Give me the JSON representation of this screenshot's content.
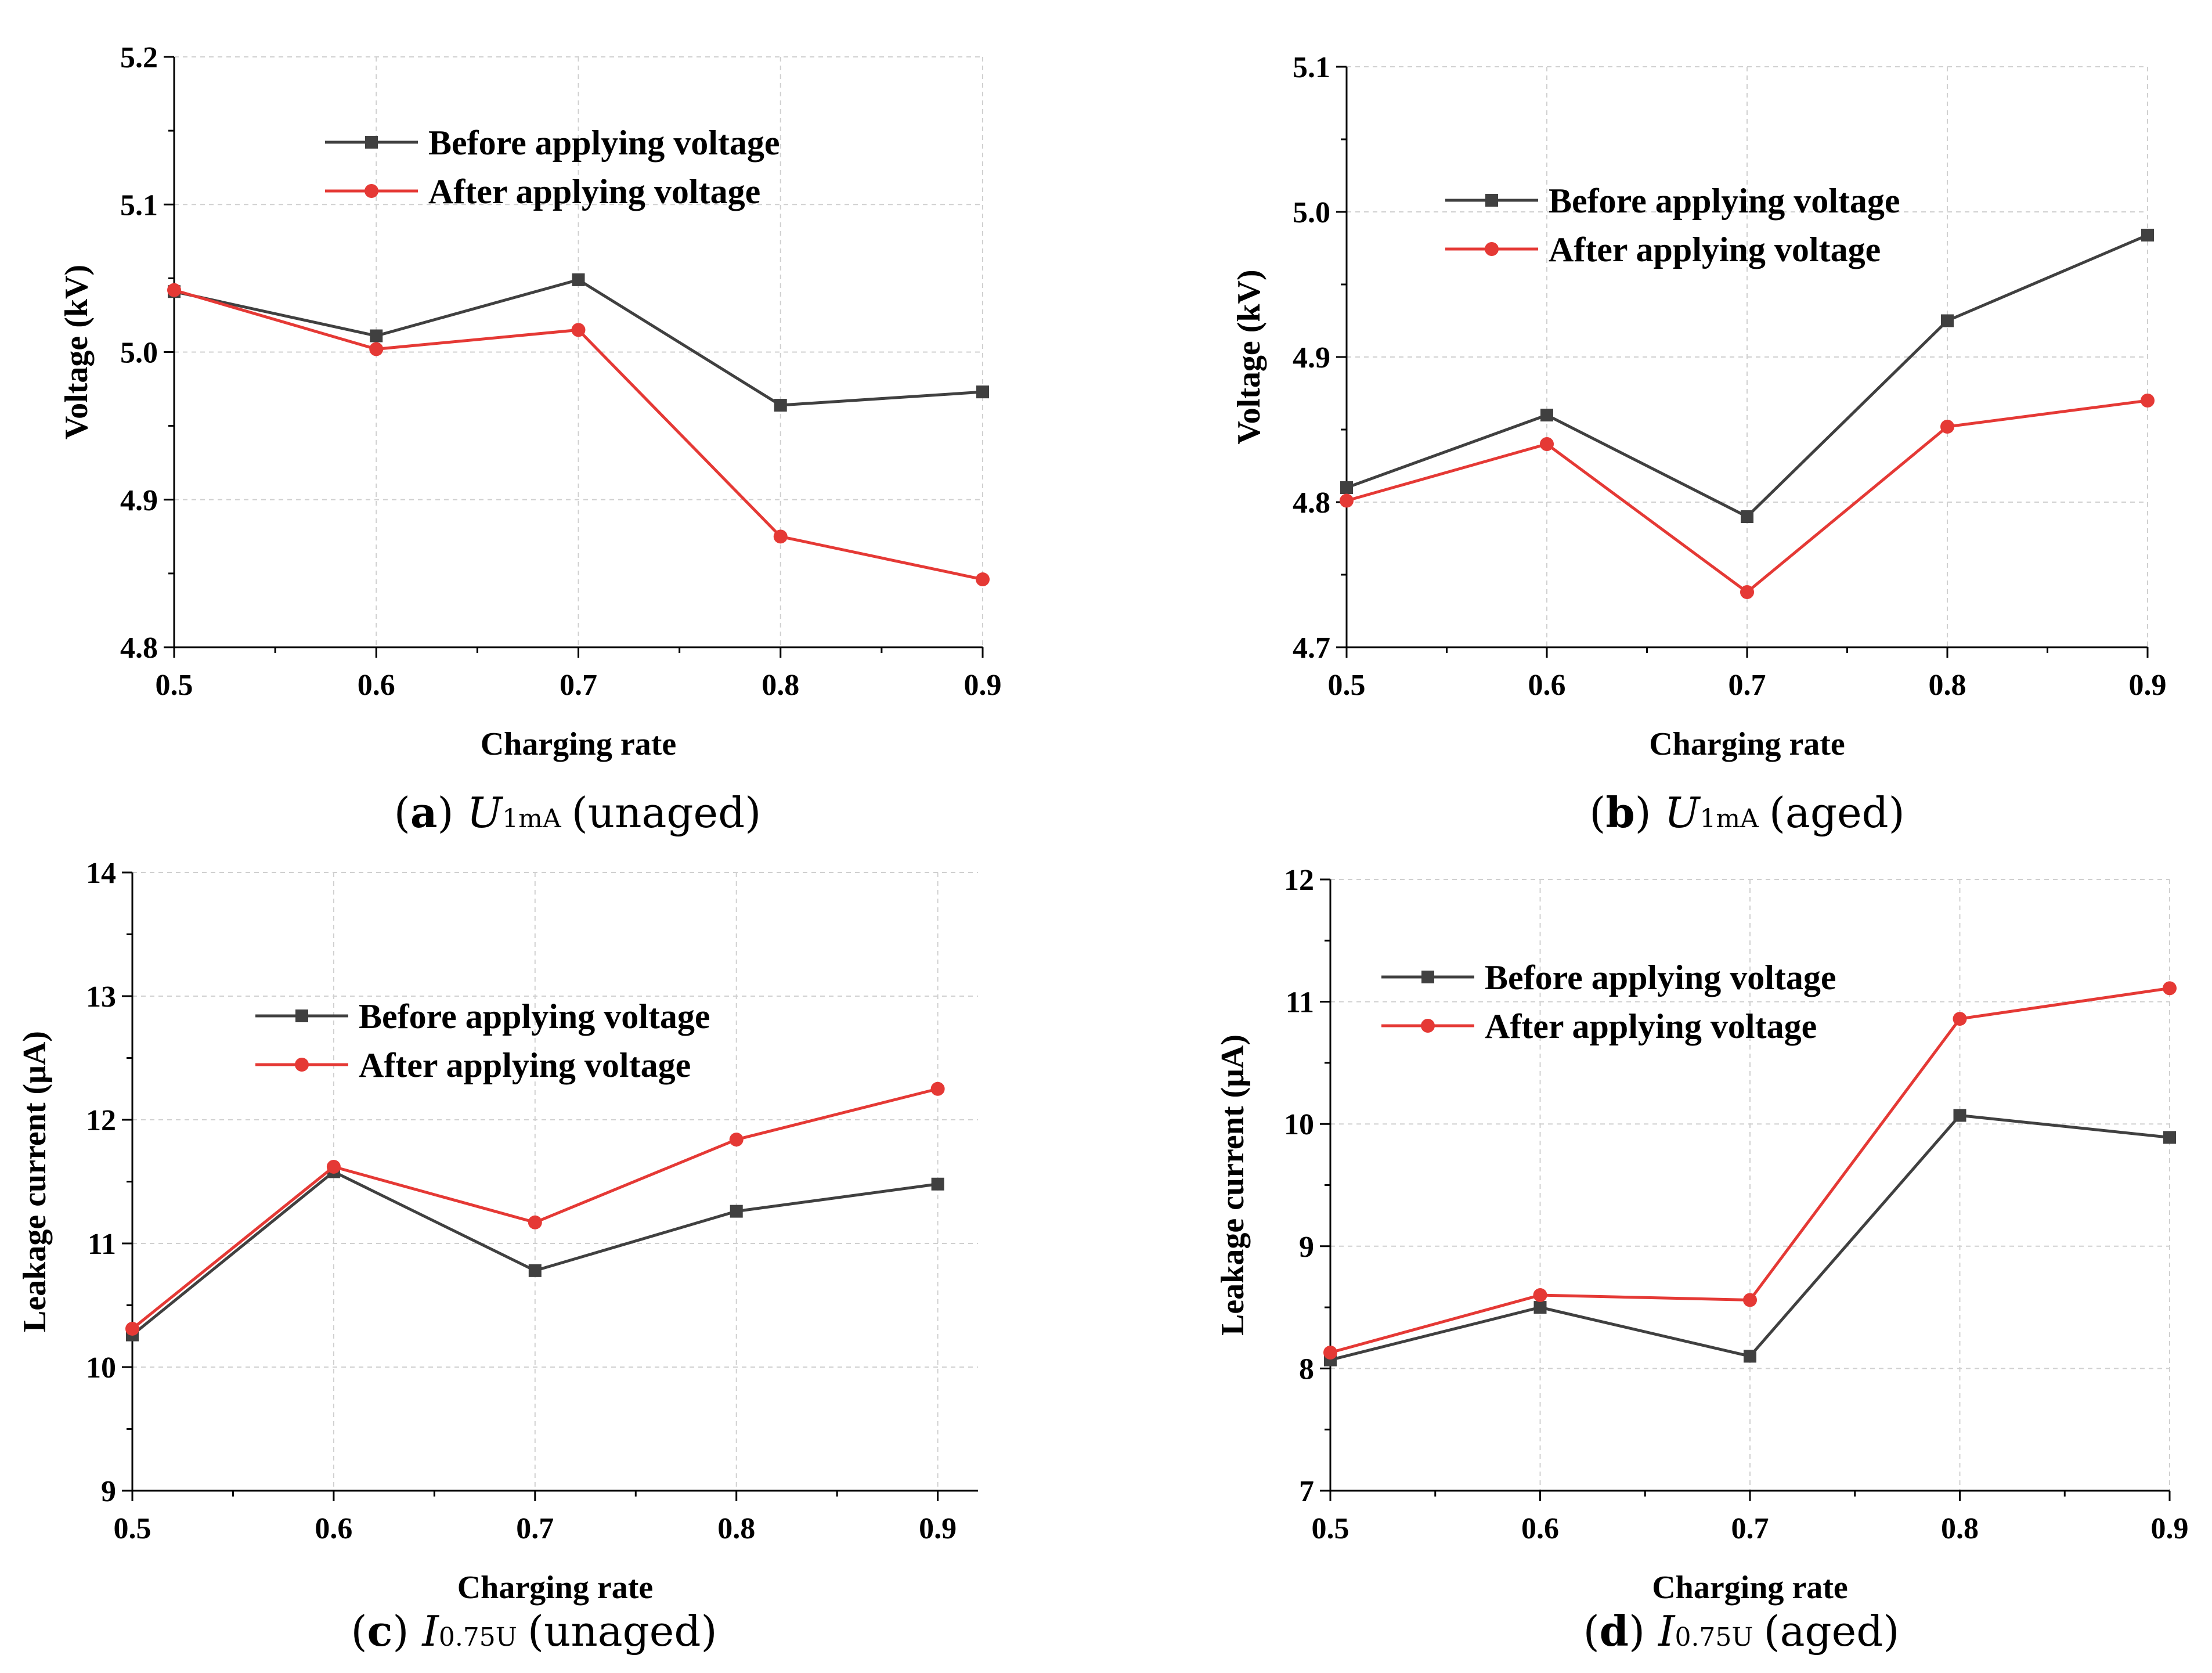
{
  "colors": {
    "before": "#404040",
    "after": "#e53935"
  },
  "chart_data": [
    {
      "type": "line",
      "caption": {
        "letter": "a",
        "symbol": "U",
        "subscript": "1mA",
        "tail": "(unaged)"
      },
      "xlabel": "Charging rate",
      "ylabel": "Voltage (kV)",
      "x": [
        0.5,
        0.6,
        0.7,
        0.8,
        0.9
      ],
      "xlim": [
        0.5,
        0.9
      ],
      "xticks": [
        "0.5",
        "0.6",
        "0.7",
        "0.8",
        "0.9"
      ],
      "ylim": [
        4.8,
        5.2
      ],
      "yticks": [
        "4.8",
        "4.9",
        "5.0",
        "5.1",
        "5.2"
      ],
      "legend": "top-center",
      "grid": true,
      "series": [
        {
          "name": "Before applying voltage",
          "marker": "square",
          "values": [
            5.041,
            5.011,
            5.049,
            4.964,
            4.973
          ]
        },
        {
          "name": "After applying voltage",
          "marker": "circle",
          "values": [
            5.042,
            5.002,
            5.015,
            4.875,
            4.846
          ]
        }
      ]
    },
    {
      "type": "line",
      "caption": {
        "letter": "b",
        "symbol": "U",
        "subscript": "1mA",
        "tail": "(aged)"
      },
      "xlabel": "Charging rate",
      "ylabel": "Voltage (kV)",
      "x": [
        0.5,
        0.6,
        0.7,
        0.8,
        0.9
      ],
      "xlim": [
        0.5,
        0.9
      ],
      "xticks": [
        "0.5",
        "0.6",
        "0.7",
        "0.8",
        "0.9"
      ],
      "ylim": [
        4.7,
        5.1
      ],
      "yticks": [
        "4.7",
        "4.8",
        "4.9",
        "5.0",
        "5.1"
      ],
      "legend": "top-center",
      "grid": true,
      "series": [
        {
          "name": "Before applying voltage",
          "marker": "square",
          "values": [
            4.81,
            4.86,
            4.79,
            4.925,
            4.984
          ]
        },
        {
          "name": "After applying voltage",
          "marker": "circle",
          "values": [
            4.801,
            4.84,
            4.738,
            4.852,
            4.87
          ]
        }
      ]
    },
    {
      "type": "line",
      "caption": {
        "letter": "c",
        "symbol": "I",
        "subscript": "0.75U",
        "tail": "(unaged)"
      },
      "xlabel": "Charging rate",
      "ylabel": "Leakage current (μA)",
      "x": [
        0.5,
        0.6,
        0.7,
        0.8,
        0.9
      ],
      "xlim": [
        0.5,
        0.92
      ],
      "xticks": [
        "0.5",
        "0.6",
        "0.7",
        "0.8",
        "0.9"
      ],
      "ylim": [
        9,
        14
      ],
      "yticks": [
        "9",
        "10",
        "11",
        "12",
        "13",
        "14"
      ],
      "legend": "top-center",
      "grid": true,
      "series": [
        {
          "name": "Before applying voltage",
          "marker": "square",
          "values": [
            10.26,
            11.58,
            10.78,
            11.26,
            11.48
          ]
        },
        {
          "name": "After applying voltage",
          "marker": "circle",
          "values": [
            10.31,
            11.62,
            11.17,
            11.84,
            12.25
          ]
        }
      ]
    },
    {
      "type": "line",
      "caption": {
        "letter": "d",
        "symbol": "I",
        "subscript": "0.75U",
        "tail": "(aged)"
      },
      "xlabel": "Charging rate",
      "ylabel": "Leakage current (μA)",
      "x": [
        0.5,
        0.6,
        0.7,
        0.8,
        0.9
      ],
      "xlim": [
        0.5,
        0.9
      ],
      "xticks": [
        "0.5",
        "0.6",
        "0.7",
        "0.8",
        "0.9"
      ],
      "ylim": [
        7,
        12
      ],
      "yticks": [
        "7",
        "8",
        "9",
        "10",
        "11",
        "12"
      ],
      "legend": "top-left",
      "grid": true,
      "series": [
        {
          "name": "Before applying voltage",
          "marker": "square",
          "values": [
            8.07,
            8.5,
            8.1,
            10.07,
            9.89
          ]
        },
        {
          "name": "After applying voltage",
          "marker": "circle",
          "values": [
            8.13,
            8.6,
            8.56,
            10.86,
            11.11
          ]
        }
      ]
    }
  ]
}
